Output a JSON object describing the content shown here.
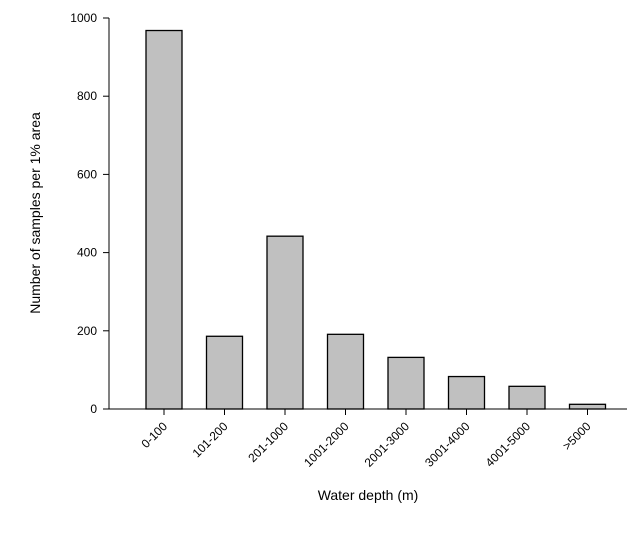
{
  "chart_data": {
    "type": "bar",
    "title": "",
    "xlabel": "Water depth (m)",
    "ylabel": "Number of  samples per 1% area",
    "categories": [
      "0-100",
      "101-200",
      "201-1000",
      "1001-2000",
      "2001-3000",
      "3001-4000",
      "4001-5000",
      ">5000"
    ],
    "values": [
      968,
      186,
      442,
      191,
      132,
      83,
      58,
      12
    ],
    "ylim": [
      0,
      1000
    ],
    "yticks": [
      0,
      200,
      400,
      600,
      800,
      1000
    ],
    "grid": false,
    "legend": "none",
    "bar_color": "#c0c0c0",
    "edge_color": "#000000"
  }
}
